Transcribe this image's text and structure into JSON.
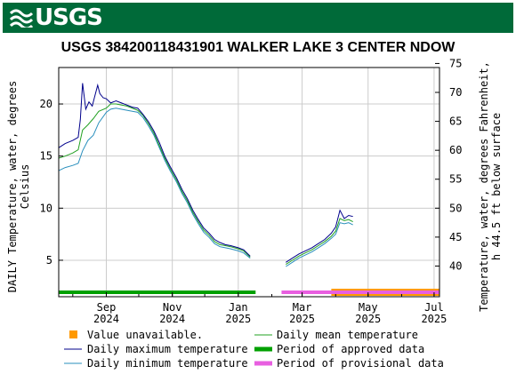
{
  "header": {
    "logo_text": "USGS",
    "brand_color": "#006a39"
  },
  "chart_data": {
    "type": "line",
    "title": "USGS 384200118431901 WALKER LAKE 3 CENTER NDOW",
    "ylabel_left": "DAILY Temperature, water, degrees Celsius",
    "ylabel_left_lines": [
      "DAILY Temperature, water, degrees",
      "Celsius"
    ],
    "ylabel_right": "Temperature, water, degrees Fahrenheit, h 44.5 ft below surface",
    "ylabel_right_lines": [
      "Temperature, water, degrees Fahrenheit,",
      "h 44.5 ft below surface"
    ],
    "x_ticks": [
      {
        "date": "2024-09-01",
        "line1": "Sep",
        "line2": "2024"
      },
      {
        "date": "2024-11-01",
        "line1": "Nov",
        "line2": "2024"
      },
      {
        "date": "2025-01-01",
        "line1": "Jan",
        "line2": "2025"
      },
      {
        "date": "2025-03-01",
        "line1": "Mar",
        "line2": "2025"
      },
      {
        "date": "2025-05-01",
        "line1": "May",
        "line2": "2025"
      },
      {
        "date": "2025-07-01",
        "line1": "Jul",
        "line2": "2025"
      }
    ],
    "xlim": [
      "2024-07-19",
      "2025-07-06"
    ],
    "ylim_c": [
      1.5,
      23.5
    ],
    "y_ticks_c": [
      5,
      10,
      15,
      20
    ],
    "y_ticks_f": [
      40,
      45,
      50,
      55,
      60,
      65,
      70,
      75
    ],
    "grid": true,
    "series": [
      {
        "name": "Daily maximum temperature",
        "color": "#00008b",
        "points": [
          [
            "2024-07-19",
            15.8
          ],
          [
            "2024-07-25",
            16.2
          ],
          [
            "2024-08-01",
            16.5
          ],
          [
            "2024-08-06",
            16.8
          ],
          [
            "2024-08-08",
            18.5
          ],
          [
            "2024-08-10",
            22.0
          ],
          [
            "2024-08-13",
            19.5
          ],
          [
            "2024-08-16",
            20.2
          ],
          [
            "2024-08-19",
            19.8
          ],
          [
            "2024-08-21",
            20.6
          ],
          [
            "2024-08-24",
            21.8
          ],
          [
            "2024-08-26",
            21.0
          ],
          [
            "2024-08-29",
            20.6
          ],
          [
            "2024-09-01",
            20.5
          ],
          [
            "2024-09-05",
            20.1
          ],
          [
            "2024-09-10",
            20.3
          ],
          [
            "2024-09-15",
            20.1
          ],
          [
            "2024-09-20",
            19.9
          ],
          [
            "2024-09-25",
            19.7
          ],
          [
            "2024-09-30",
            19.6
          ],
          [
            "2024-10-05",
            19.0
          ],
          [
            "2024-10-10",
            18.3
          ],
          [
            "2024-10-15",
            17.4
          ],
          [
            "2024-10-20",
            16.3
          ],
          [
            "2024-10-25",
            15.0
          ],
          [
            "2024-10-30",
            14.0
          ],
          [
            "2024-11-05",
            12.9
          ],
          [
            "2024-11-10",
            11.8
          ],
          [
            "2024-11-15",
            10.9
          ],
          [
            "2024-11-20",
            9.8
          ],
          [
            "2024-11-25",
            8.9
          ],
          [
            "2024-11-30",
            8.1
          ],
          [
            "2024-12-05",
            7.6
          ],
          [
            "2024-12-10",
            7.0
          ],
          [
            "2024-12-15",
            6.7
          ],
          [
            "2024-12-20",
            6.5
          ],
          [
            "2024-12-25",
            6.4
          ],
          [
            "2025-01-01",
            6.2
          ],
          [
            "2025-01-06",
            6.0
          ],
          [
            "2025-01-12",
            5.4
          ],
          [
            "2025-02-14",
            4.8
          ],
          [
            "2025-02-20",
            5.2
          ],
          [
            "2025-02-26",
            5.6
          ],
          [
            "2025-03-04",
            5.9
          ],
          [
            "2025-03-10",
            6.2
          ],
          [
            "2025-03-16",
            6.6
          ],
          [
            "2025-03-22",
            7.0
          ],
          [
            "2025-03-28",
            7.6
          ],
          [
            "2025-04-01",
            8.2
          ],
          [
            "2025-04-05",
            9.8
          ],
          [
            "2025-04-09",
            9.0
          ],
          [
            "2025-04-13",
            9.3
          ],
          [
            "2025-04-17",
            9.2
          ]
        ]
      },
      {
        "name": "Daily mean temperature",
        "color": "#22a022",
        "points": [
          [
            "2024-07-19",
            14.8
          ],
          [
            "2024-07-25",
            15.0
          ],
          [
            "2024-08-01",
            15.3
          ],
          [
            "2024-08-06",
            15.6
          ],
          [
            "2024-08-10",
            17.5
          ],
          [
            "2024-08-15",
            18.0
          ],
          [
            "2024-08-20",
            18.6
          ],
          [
            "2024-08-25",
            19.3
          ],
          [
            "2024-09-01",
            19.6
          ],
          [
            "2024-09-05",
            20.0
          ],
          [
            "2024-09-10",
            20.0
          ],
          [
            "2024-09-20",
            19.8
          ],
          [
            "2024-09-30",
            19.4
          ],
          [
            "2024-10-05",
            18.9
          ],
          [
            "2024-10-10",
            18.1
          ],
          [
            "2024-10-15",
            17.2
          ],
          [
            "2024-10-20",
            16.0
          ],
          [
            "2024-10-25",
            14.8
          ],
          [
            "2024-10-30",
            13.8
          ],
          [
            "2024-11-05",
            12.7
          ],
          [
            "2024-11-10",
            11.6
          ],
          [
            "2024-11-15",
            10.7
          ],
          [
            "2024-11-20",
            9.6
          ],
          [
            "2024-11-25",
            8.7
          ],
          [
            "2024-11-30",
            7.9
          ],
          [
            "2024-12-05",
            7.4
          ],
          [
            "2024-12-10",
            6.8
          ],
          [
            "2024-12-15",
            6.5
          ],
          [
            "2024-12-20",
            6.4
          ],
          [
            "2024-12-25",
            6.3
          ],
          [
            "2025-01-01",
            6.1
          ],
          [
            "2025-01-06",
            5.9
          ],
          [
            "2025-01-12",
            5.3
          ],
          [
            "2025-02-14",
            4.6
          ],
          [
            "2025-02-20",
            5.0
          ],
          [
            "2025-02-26",
            5.4
          ],
          [
            "2025-03-04",
            5.7
          ],
          [
            "2025-03-10",
            6.0
          ],
          [
            "2025-03-16",
            6.4
          ],
          [
            "2025-03-22",
            6.8
          ],
          [
            "2025-03-28",
            7.3
          ],
          [
            "2025-04-01",
            7.8
          ],
          [
            "2025-04-05",
            9.0
          ],
          [
            "2025-04-09",
            8.8
          ],
          [
            "2025-04-13",
            8.9
          ],
          [
            "2025-04-17",
            8.7
          ]
        ]
      },
      {
        "name": "Daily minimum temperature",
        "color": "#2a8fbd",
        "points": [
          [
            "2024-07-19",
            13.6
          ],
          [
            "2024-07-25",
            13.9
          ],
          [
            "2024-08-01",
            14.1
          ],
          [
            "2024-08-06",
            14.3
          ],
          [
            "2024-08-10",
            15.5
          ],
          [
            "2024-08-15",
            16.5
          ],
          [
            "2024-08-20",
            17.0
          ],
          [
            "2024-08-25",
            18.2
          ],
          [
            "2024-09-01",
            19.2
          ],
          [
            "2024-09-05",
            19.5
          ],
          [
            "2024-09-10",
            19.6
          ],
          [
            "2024-09-20",
            19.4
          ],
          [
            "2024-09-30",
            19.2
          ],
          [
            "2024-10-05",
            18.7
          ],
          [
            "2024-10-10",
            17.9
          ],
          [
            "2024-10-15",
            17.0
          ],
          [
            "2024-10-20",
            15.8
          ],
          [
            "2024-10-25",
            14.6
          ],
          [
            "2024-10-30",
            13.6
          ],
          [
            "2024-11-05",
            12.5
          ],
          [
            "2024-11-10",
            11.4
          ],
          [
            "2024-11-15",
            10.5
          ],
          [
            "2024-11-20",
            9.4
          ],
          [
            "2024-11-25",
            8.5
          ],
          [
            "2024-11-30",
            7.7
          ],
          [
            "2024-12-05",
            7.2
          ],
          [
            "2024-12-10",
            6.6
          ],
          [
            "2024-12-15",
            6.3
          ],
          [
            "2024-12-20",
            6.2
          ],
          [
            "2024-12-25",
            6.1
          ],
          [
            "2025-01-01",
            5.9
          ],
          [
            "2025-01-06",
            5.7
          ],
          [
            "2025-01-12",
            5.2
          ],
          [
            "2025-02-14",
            4.4
          ],
          [
            "2025-02-20",
            4.8
          ],
          [
            "2025-02-26",
            5.2
          ],
          [
            "2025-03-04",
            5.5
          ],
          [
            "2025-03-10",
            5.8
          ],
          [
            "2025-03-16",
            6.2
          ],
          [
            "2025-03-22",
            6.6
          ],
          [
            "2025-03-28",
            7.1
          ],
          [
            "2025-04-01",
            7.5
          ],
          [
            "2025-04-05",
            8.6
          ],
          [
            "2025-04-09",
            8.5
          ],
          [
            "2025-04-13",
            8.6
          ],
          [
            "2025-04-17",
            8.4
          ]
        ]
      }
    ],
    "bars": [
      {
        "name": "Period of approved data",
        "color": "#00a000",
        "start": "2024-07-19",
        "end": "2025-01-17"
      },
      {
        "name": "Period of provisional data",
        "color": "#e85fe0",
        "start": "2025-02-10",
        "end": "2025-07-06"
      },
      {
        "name": "Value unavailable.",
        "color": "#ff9900",
        "start": "2025-03-28",
        "end": "2025-07-06"
      }
    ]
  },
  "legend": {
    "value_unavailable": "Value unavailable.",
    "daily_max": "Daily maximum temperature",
    "daily_min": "Daily minimum temperature",
    "daily_mean": "Daily mean temperature",
    "approved": "Period of approved data",
    "provisional": "Period of provisional data"
  },
  "colors": {
    "unavailable": "#ff9900",
    "max": "#00008b",
    "min": "#2a8fbd",
    "mean": "#22a022",
    "approved": "#00a000",
    "provisional": "#e85fe0"
  }
}
